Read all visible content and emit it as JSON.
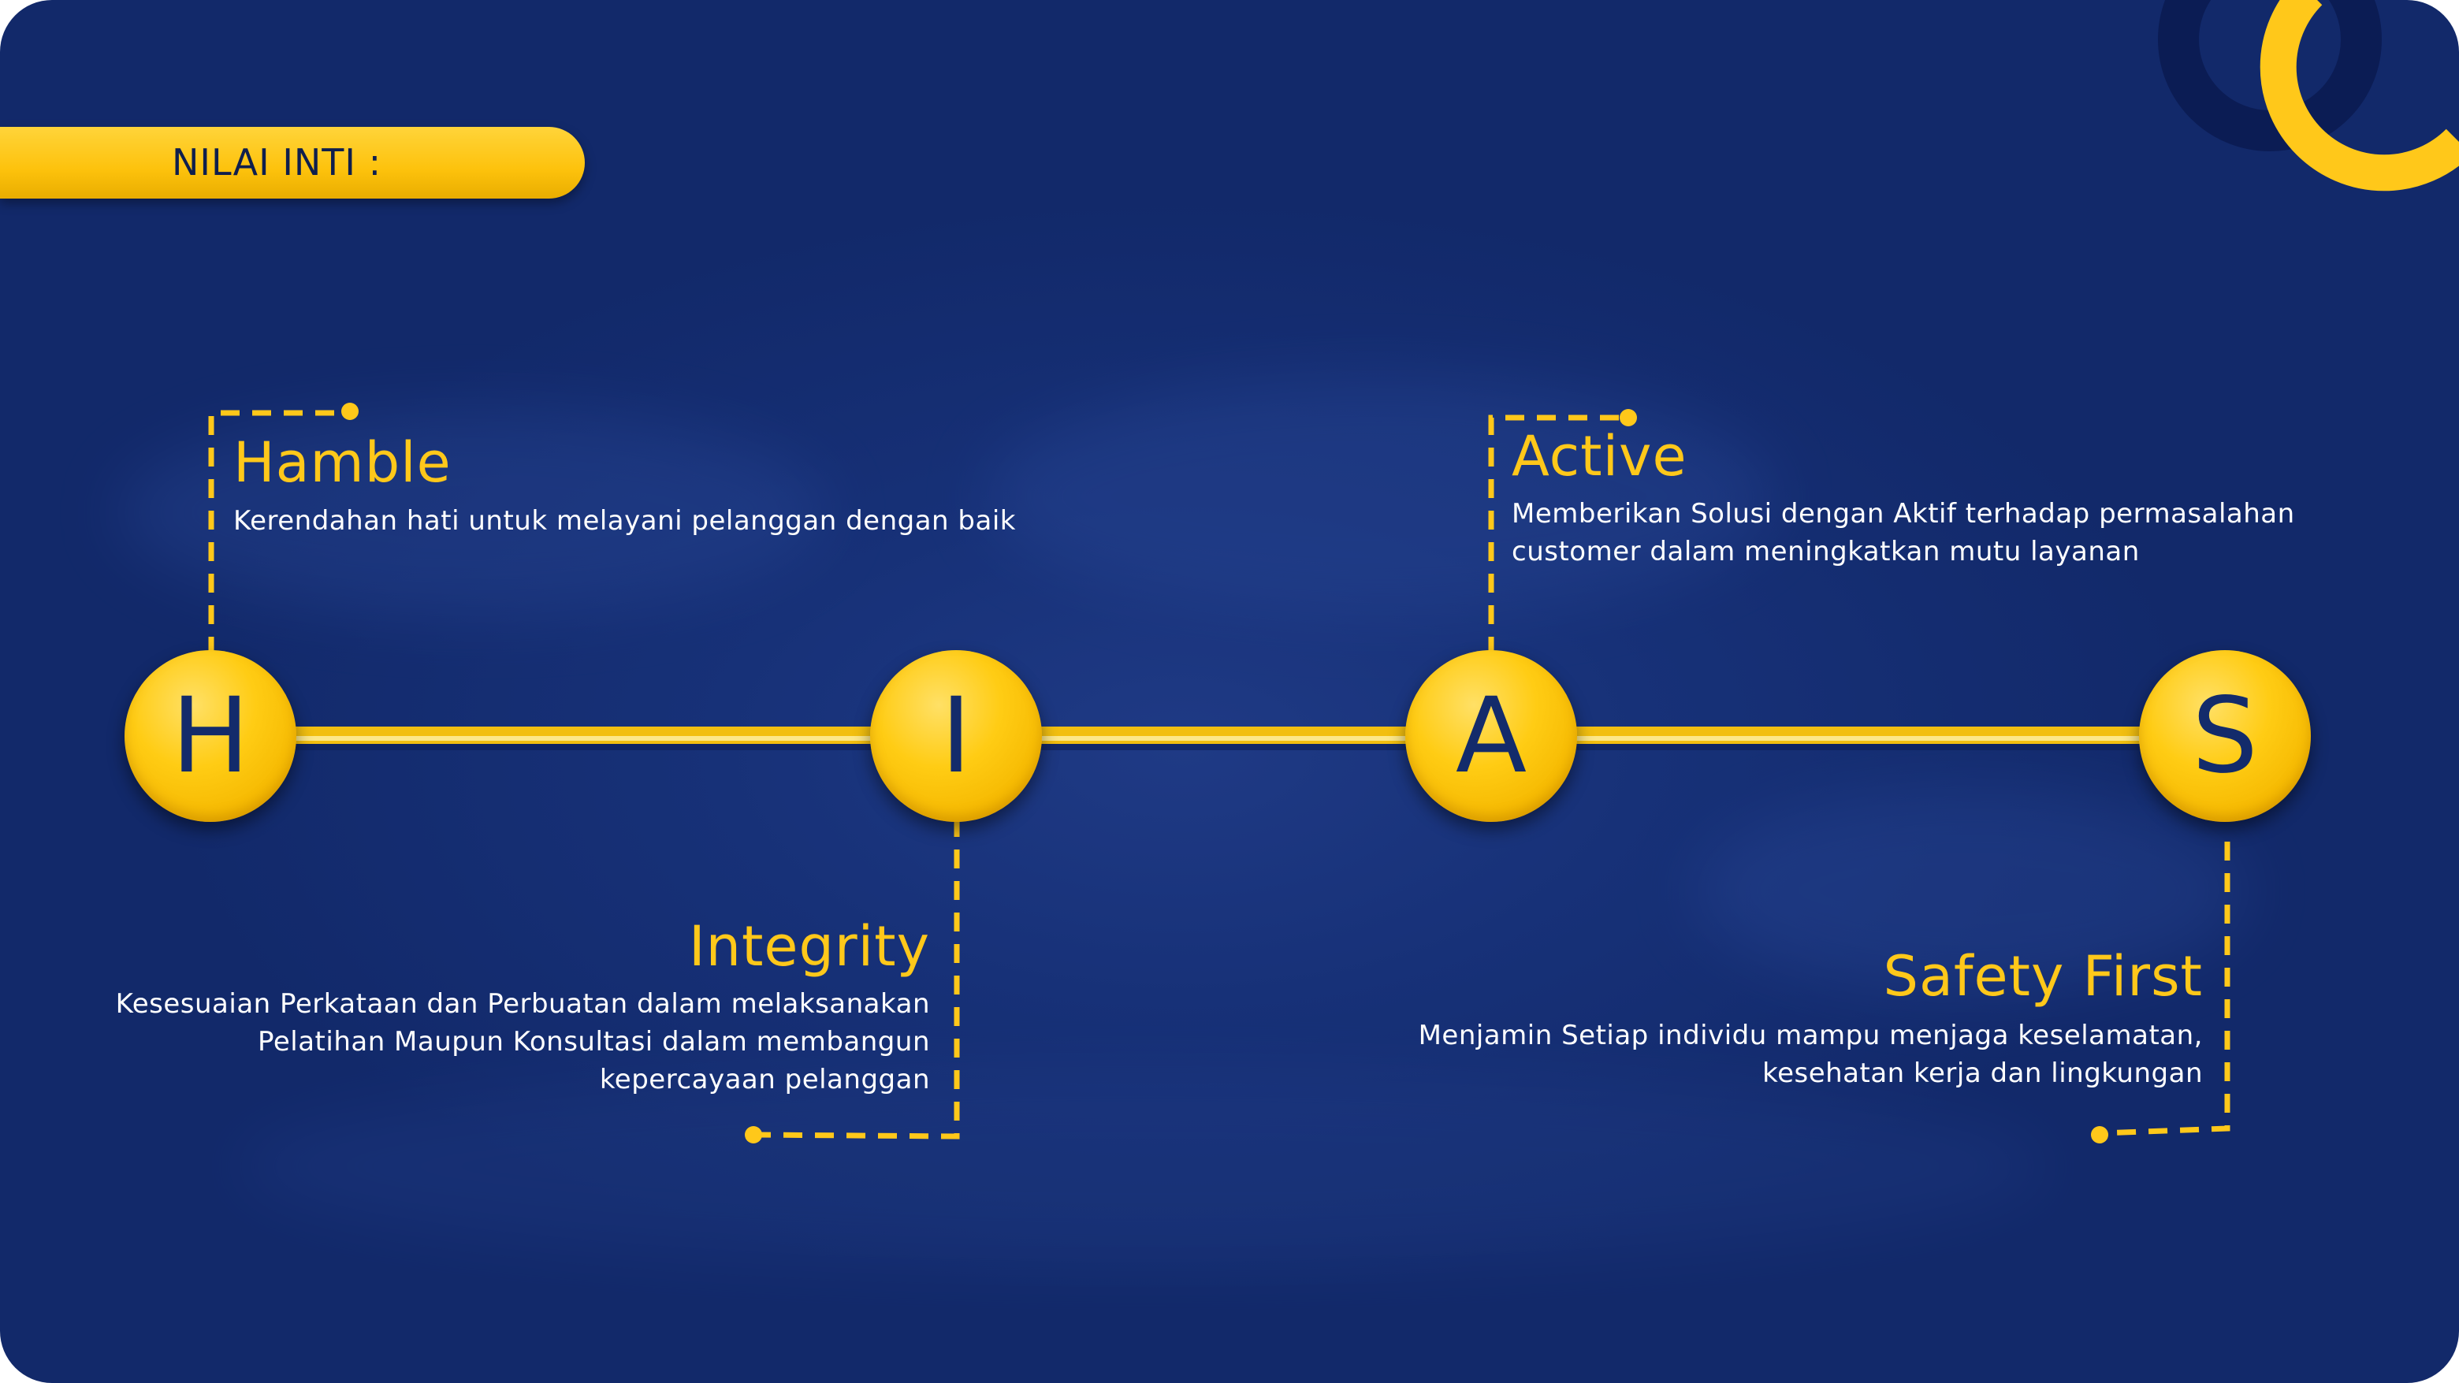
{
  "header": {
    "label": "NILAI INTI :"
  },
  "colors": {
    "background": "#173178",
    "accent": "#fdc20c",
    "letter": "#132b6b",
    "text": "#ffffff"
  },
  "values": [
    {
      "letter": "H",
      "title": "Hamble",
      "lines": [
        "Kerendahan hati untuk melayani pelanggan dengan baik"
      ]
    },
    {
      "letter": "I",
      "title": "Integrity",
      "lines": [
        "Kesesuaian Perkataan dan Perbuatan dalam melaksanakan",
        "Pelatihan Maupun Konsultasi dalam membangun",
        "kepercayaan pelanggan"
      ]
    },
    {
      "letter": "A",
      "title": "Active",
      "lines": [
        "Memberikan Solusi dengan Aktif terhadap permasalahan",
        "customer dalam meningkatkan mutu layanan"
      ]
    },
    {
      "letter": "S",
      "title": "Safety First",
      "lines": [
        "Menjamin Setiap individu mampu menjaga keselamatan,",
        "kesehatan kerja dan lingkungan"
      ]
    }
  ]
}
